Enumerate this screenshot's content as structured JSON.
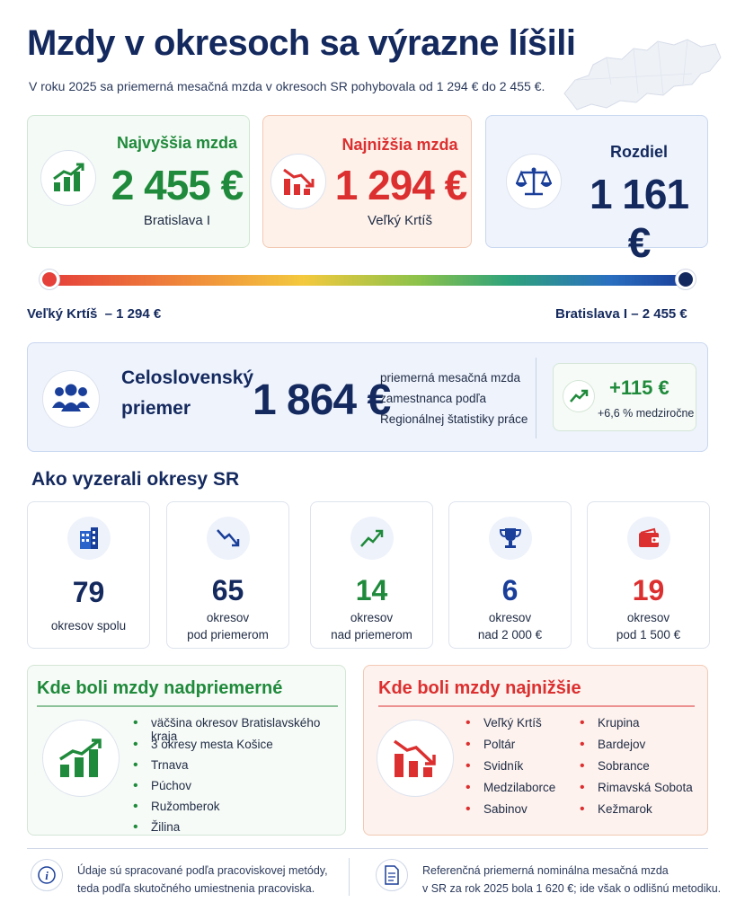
{
  "header": {
    "title": "Mzdy v okresoch sa výrazne líšili",
    "subtitle": "V roku 2025 sa priemerná mesačná mzda v okresoch SR pohybovala od 1 294 € do 2 455 €."
  },
  "cards": {
    "highest": {
      "label": "Najvyššia mzda",
      "value": "2 455 €",
      "place": "Bratislava I",
      "icon": "chart-up-icon"
    },
    "lowest": {
      "label": "Najnižšia mzda",
      "value": "1 294 €",
      "place": "Veľký Krtíš",
      "icon": "chart-down-icon"
    },
    "difference": {
      "label": "Rozdiel",
      "value": "1 161 €",
      "icon": "scale-icon"
    }
  },
  "range": {
    "left_label": "Veľký Krtíš  – 1 294 €",
    "right_label": "Bratislava I – 2 455 €"
  },
  "average": {
    "label": "Celoslovenský priemer",
    "value": "1 864 €",
    "description": "priemerná mesačná mzda zamestnanca podľa Regionálnej štatistiky práce",
    "delta_value": "+115 €",
    "delta_sub": "+6,6 % medziročne"
  },
  "districts": {
    "title": "Ako vyzerali okresy SR",
    "items": [
      {
        "number": "79",
        "text1": "okresov spolu",
        "text2": "",
        "color": "#14295e",
        "icon": "building-icon"
      },
      {
        "number": "65",
        "text1": "okresov",
        "text2": "pod priemerom",
        "color": "#14295e",
        "icon": "trend-down-icon"
      },
      {
        "number": "14",
        "text1": "okresov",
        "text2": "nad priemerom",
        "color": "#1f8a3b",
        "icon": "trend-up-icon"
      },
      {
        "number": "6",
        "text1": "okresov",
        "text2": "nad 2 000 €",
        "color": "#1a3f9a",
        "icon": "trophy-icon"
      },
      {
        "number": "19",
        "text1": "okresov",
        "text2": "pod 1 500 €",
        "color": "#dc2f2f",
        "icon": "wallet-icon"
      }
    ]
  },
  "above_average": {
    "title": "Kde boli mzdy nadpriemerné",
    "items": [
      "väčšina okresov Bratislavského kraja",
      "3 okresy mesta Košice",
      "Trnava",
      "Púchov",
      "Ružomberok",
      "Žilina"
    ]
  },
  "lowest_list": {
    "title": "Kde boli mzdy najnižšie",
    "col1": [
      "Veľký Krtíš",
      "Poltár",
      "Svidník",
      "Medzilaborce",
      "Sabinov"
    ],
    "col2": [
      "Krupina",
      "Bardejov",
      "Sobrance",
      "Rimavská Sobota",
      "Kežmarok"
    ]
  },
  "footer": {
    "note1_line1": "Údaje sú spracované podľa pracoviskovej metódy,",
    "note1_line2": "teda podľa skutočného umiestnenia pracoviska.",
    "note2_line1": "Referenčná priemerná nominálna mesačná mzda",
    "note2_line2": "v SR za rok 2025 bola 1 620 €; ide však o odlišnú metodiku."
  }
}
